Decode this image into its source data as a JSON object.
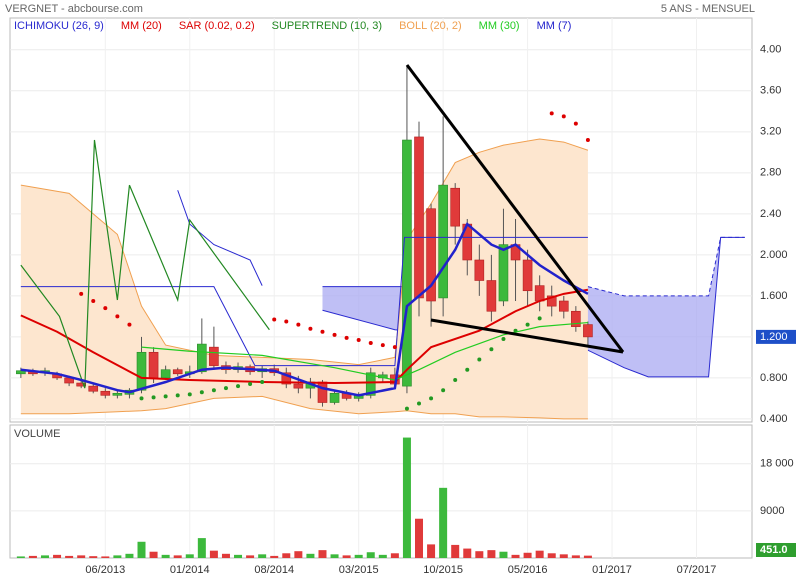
{
  "chart_data": [
    {
      "type": "candlestick",
      "title": "VERGNET - abcbourse.com",
      "subtitle": "5 ANS - MENSUEL",
      "xlim": [
        -0.9,
        60.6
      ],
      "ylim": [
        0.37,
        4.31
      ],
      "yticks": [
        {
          "value": 4,
          "label": "4.00"
        },
        {
          "value": 3.6,
          "label": "3.60"
        },
        {
          "value": 3.2,
          "label": "3.20"
        },
        {
          "value": 2.8,
          "label": "2.80"
        },
        {
          "value": 2.4,
          "label": "2.40"
        },
        {
          "value": 2,
          "label": "2.000"
        },
        {
          "value": 1.6,
          "label": "1.600"
        },
        {
          "value": 1.2,
          "label": "1.200",
          "highlight": true
        },
        {
          "value": 0.8,
          "label": "0.800"
        },
        {
          "value": 0.4,
          "label": "0.400"
        }
      ],
      "grid": true,
      "up_color": "#3cb93c",
      "down_color": "#e03a3a",
      "highlight_color": "#1e4fc8",
      "x": [
        0,
        1,
        2,
        3,
        4,
        5,
        6,
        7,
        8,
        9,
        10,
        11,
        12,
        13,
        14,
        15,
        16,
        17,
        18,
        19,
        20,
        21,
        22,
        23,
        24,
        25,
        26,
        27,
        28,
        29,
        30,
        31,
        32,
        33,
        34,
        35,
        36,
        37,
        38,
        39,
        40,
        41,
        42,
        43,
        44,
        45,
        46,
        47
      ],
      "open": [
        0.84,
        0.86,
        0.85,
        0.84,
        0.8,
        0.75,
        0.72,
        0.67,
        0.63,
        0.64,
        0.68,
        1.05,
        0.8,
        0.88,
        0.84,
        0.86,
        1.1,
        0.92,
        0.88,
        0.91,
        0.86,
        0.89,
        0.85,
        0.74,
        0.7,
        0.76,
        0.56,
        0.65,
        0.6,
        0.63,
        0.8,
        0.83,
        0.72,
        3.15,
        2.45,
        1.58,
        2.65,
        2.3,
        1.95,
        1.75,
        1.55,
        2.1,
        1.95,
        1.7,
        1.6,
        1.55,
        1.45,
        1.32
      ],
      "high": [
        0.9,
        0.89,
        0.9,
        0.86,
        0.82,
        0.77,
        0.74,
        0.7,
        0.68,
        0.7,
        1.2,
        1.1,
        0.92,
        0.9,
        0.92,
        1.38,
        1.3,
        0.96,
        0.95,
        0.93,
        0.92,
        0.93,
        0.9,
        0.82,
        0.8,
        0.78,
        0.68,
        0.68,
        0.66,
        0.9,
        0.86,
        0.9,
        3.85,
        3.3,
        2.5,
        3.35,
        2.7,
        2.35,
        2.1,
        2.0,
        2.45,
        2.35,
        2.05,
        1.8,
        1.7,
        1.6,
        1.5,
        1.35
      ],
      "low": [
        0.8,
        0.82,
        0.82,
        0.78,
        0.72,
        0.7,
        0.65,
        0.6,
        0.6,
        0.6,
        0.65,
        0.75,
        0.78,
        0.82,
        0.8,
        0.84,
        0.88,
        0.84,
        0.85,
        0.83,
        0.8,
        0.82,
        0.7,
        0.65,
        0.6,
        0.52,
        0.54,
        0.58,
        0.57,
        0.6,
        0.75,
        0.72,
        0.65,
        1.4,
        1.3,
        1.4,
        2.1,
        1.8,
        1.6,
        1.35,
        1.5,
        1.55,
        1.5,
        1.45,
        1.4,
        1.38,
        1.25,
        1.1
      ],
      "close": [
        0.87,
        0.84,
        0.87,
        0.8,
        0.75,
        0.72,
        0.67,
        0.63,
        0.65,
        0.68,
        1.05,
        0.8,
        0.88,
        0.84,
        0.86,
        1.13,
        0.92,
        0.88,
        0.91,
        0.86,
        0.89,
        0.85,
        0.74,
        0.7,
        0.76,
        0.56,
        0.65,
        0.6,
        0.63,
        0.85,
        0.83,
        0.74,
        3.12,
        1.58,
        1.55,
        2.68,
        2.28,
        1.95,
        1.75,
        1.45,
        2.1,
        1.95,
        1.65,
        1.55,
        1.5,
        1.45,
        1.3,
        1.2
      ],
      "series": [
        {
          "name": "ICHIMOKU (26, 9)",
          "color": "#2a2ad0",
          "kind": "ichimoku",
          "lines": [
            {
              "x": [
                0,
                16,
                19.4,
                31,
                31.8,
                47
              ],
              "values": [
                1.69,
                1.69,
                0.92,
                0.92,
                2.17,
                2.17
              ]
            },
            {
              "x": [
                13,
                14,
                16,
                19,
                20
              ],
              "values": [
                2.63,
                2.3,
                2.1,
                1.95,
                1.7
              ]
            }
          ],
          "cloud": {
            "x": [
              25,
              31,
              37,
              43,
              47,
              50,
              52,
              57,
              58,
              60
            ],
            "upper": [
              1.69,
              1.69,
              1.69,
              1.69,
              1.69,
              1.6,
              1.6,
              1.6,
              2.17,
              2.17
            ],
            "lower": [
              1.46,
              1.27,
              1.2,
              1.1,
              1.07,
              0.9,
              0.81,
              0.81,
              2.17,
              2.17
            ],
            "fill": "#a9a9f2"
          }
        },
        {
          "name": "MM (20)",
          "color": "#dd0000",
          "kind": "line",
          "width": 2,
          "x": [
            0,
            3,
            6,
            10,
            14,
            20,
            26,
            31,
            32,
            34,
            38,
            41,
            43,
            45,
            47
          ],
          "values": [
            1.41,
            1.25,
            1.05,
            0.8,
            0.78,
            0.76,
            0.75,
            0.76,
            0.88,
            1.1,
            1.26,
            1.45,
            1.55,
            1.62,
            1.66
          ]
        },
        {
          "name": "SAR (0.02, 0.2)",
          "color": "#dd0000",
          "below_color": "#229922",
          "kind": "sar",
          "x": [
            5,
            6,
            7,
            8,
            9,
            10,
            11,
            12,
            13,
            14,
            15,
            16,
            17,
            18,
            19,
            20,
            21,
            22,
            23,
            24,
            25,
            26,
            27,
            28,
            29,
            30,
            31,
            32,
            33,
            34,
            35,
            36,
            37,
            38,
            39,
            40,
            41,
            42,
            43,
            44,
            45,
            46,
            47
          ],
          "values": [
            1.62,
            1.55,
            1.48,
            1.4,
            1.32,
            0.6,
            0.61,
            0.62,
            0.63,
            0.64,
            0.66,
            0.68,
            0.7,
            0.72,
            0.74,
            0.76,
            1.37,
            1.35,
            1.32,
            1.28,
            1.25,
            1.22,
            1.19,
            1.17,
            1.14,
            1.12,
            1.1,
            0.5,
            0.55,
            0.6,
            0.68,
            0.78,
            0.88,
            0.98,
            1.08,
            1.18,
            1.26,
            1.32,
            1.38,
            3.38,
            3.35,
            3.28,
            3.12
          ]
        },
        {
          "name": "SUPERTREND (10, 3)",
          "color": "#228822",
          "kind": "line",
          "width": 1.2,
          "x": [
            0,
            3.2,
            5.3,
            6.1,
            8,
            9,
            13,
            14,
            20.6
          ],
          "values": [
            1.9,
            1.4,
            0.7,
            3.12,
            1.56,
            2.68,
            1.56,
            2.34,
            1.27
          ]
        },
        {
          "name": "BOLL (20, 2)",
          "color": "#f0a050",
          "fill": "#fde6cf",
          "kind": "band",
          "x": [
            0,
            4,
            8,
            10,
            12,
            16,
            20,
            24,
            28,
            31,
            32,
            34,
            36,
            38,
            40,
            43,
            45,
            47
          ],
          "upper": [
            2.68,
            2.6,
            2.2,
            1.5,
            1.12,
            1.02,
            1.0,
            0.98,
            0.93,
            1.0,
            2.15,
            2.5,
            2.9,
            3.0,
            3.07,
            3.13,
            3.1,
            3.02
          ],
          "lower": [
            0.45,
            0.45,
            0.47,
            0.48,
            0.5,
            0.6,
            0.62,
            0.5,
            0.45,
            0.47,
            0.48,
            0.45,
            0.45,
            0.42,
            0.42,
            0.41,
            0.4,
            0.4
          ]
        },
        {
          "name": "MM (30)",
          "color": "#22cc22",
          "kind": "line",
          "width": 1.2,
          "x": [
            10,
            14,
            20,
            26,
            31,
            33,
            36,
            40,
            43,
            47
          ],
          "values": [
            1.1,
            1.06,
            1.02,
            0.9,
            0.78,
            0.88,
            1.05,
            1.22,
            1.3,
            1.34
          ]
        },
        {
          "name": "MM (7)",
          "color": "#2222cc",
          "kind": "line",
          "width": 2.5,
          "x": [
            0,
            3,
            5,
            8,
            9,
            12,
            15,
            17,
            21,
            25,
            28,
            31,
            32,
            34,
            36,
            37,
            39,
            40,
            41,
            43,
            45,
            47
          ],
          "values": [
            0.88,
            0.84,
            0.78,
            0.68,
            0.66,
            0.76,
            0.88,
            0.9,
            0.87,
            0.7,
            0.63,
            0.7,
            1.5,
            1.7,
            2.05,
            2.3,
            2.1,
            2.05,
            2.1,
            1.9,
            1.75,
            1.62
          ]
        }
      ]
    },
    {
      "type": "bar",
      "title": "VOLUME",
      "xlim": [
        -0.9,
        60.6
      ],
      "ylim": [
        0,
        25400
      ],
      "yticks": [
        {
          "value": 18000,
          "label": "18 000"
        },
        9000
      ],
      "highlight_color": "#2e9e2e",
      "xticks": [
        {
          "value": 7,
          "label": "06/2013"
        },
        {
          "value": 14,
          "label": "01/2014"
        },
        {
          "value": 21,
          "label": "08/2014"
        },
        {
          "value": 28,
          "label": "03/2015"
        },
        {
          "value": 35,
          "label": "10/2015"
        },
        {
          "value": 42,
          "label": "05/2016"
        },
        {
          "value": 49,
          "label": "01/2017"
        },
        {
          "value": 56,
          "label": "07/2017"
        }
      ],
      "values": [
        300,
        400,
        500,
        600,
        400,
        500,
        350,
        300,
        500,
        800,
        3100,
        1200,
        600,
        500,
        700,
        3800,
        1400,
        800,
        600,
        500,
        700,
        400,
        900,
        1300,
        800,
        1500,
        700,
        500,
        600,
        1100,
        600,
        900,
        23000,
        7500,
        2600,
        13400,
        2500,
        1800,
        1300,
        1500,
        1200,
        600,
        1000,
        1400,
        900,
        700,
        500,
        451
      ],
      "value_labels": [
        null,
        null,
        null,
        null,
        null,
        null,
        null,
        null,
        null,
        null,
        null,
        null,
        null,
        null,
        null,
        null,
        null,
        null,
        null,
        null,
        null,
        null,
        null,
        null,
        null,
        null,
        null,
        null,
        null,
        null,
        null,
        null,
        null,
        null,
        null,
        null,
        null,
        null,
        null,
        null,
        null,
        null,
        null,
        null,
        null,
        null,
        null,
        "451.0"
      ]
    }
  ]
}
